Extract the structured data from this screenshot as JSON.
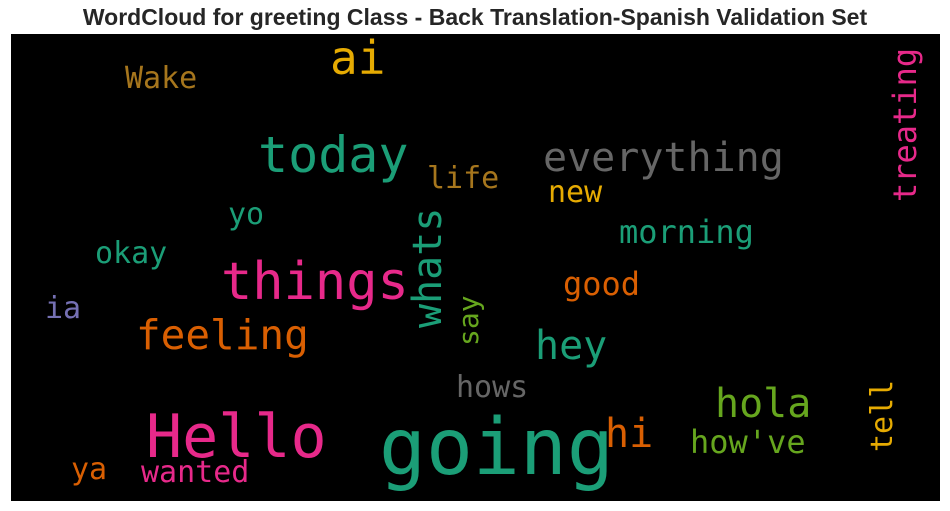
{
  "chart_data": {
    "type": "wordcloud",
    "title": "WordCloud for greeting Class - Back Translation-Spanish Validation Set",
    "background": "#000000",
    "words": [
      {
        "text": "going",
        "color": "#1b9e77",
        "orientation": "horizontal"
      },
      {
        "text": "Hello",
        "color": "#e7298a",
        "orientation": "horizontal"
      },
      {
        "text": "things",
        "color": "#e7298a",
        "orientation": "horizontal"
      },
      {
        "text": "today",
        "color": "#1b9e77",
        "orientation": "horizontal"
      },
      {
        "text": "everything",
        "color": "#666666",
        "orientation": "horizontal"
      },
      {
        "text": "ai",
        "color": "#e6ab02",
        "orientation": "horizontal"
      },
      {
        "text": "feeling",
        "color": "#d95f02",
        "orientation": "horizontal"
      },
      {
        "text": "whats",
        "color": "#1b9e77",
        "orientation": "vertical"
      },
      {
        "text": "hola",
        "color": "#66a61e",
        "orientation": "horizontal"
      },
      {
        "text": "hey",
        "color": "#1b9e77",
        "orientation": "horizontal"
      },
      {
        "text": "hi",
        "color": "#d95f02",
        "orientation": "horizontal"
      },
      {
        "text": "treating",
        "color": "#e7298a",
        "orientation": "vertical"
      },
      {
        "text": "morning",
        "color": "#1b9e77",
        "orientation": "horizontal"
      },
      {
        "text": "how've",
        "color": "#66a61e",
        "orientation": "horizontal"
      },
      {
        "text": "Wake",
        "color": "#a6761d",
        "orientation": "horizontal"
      },
      {
        "text": "tell",
        "color": "#e6ab02",
        "orientation": "vertical"
      },
      {
        "text": "wanted",
        "color": "#e7298a",
        "orientation": "horizontal"
      },
      {
        "text": "good",
        "color": "#d95f02",
        "orientation": "horizontal"
      },
      {
        "text": "okay",
        "color": "#1b9e77",
        "orientation": "horizontal"
      },
      {
        "text": "hows",
        "color": "#666666",
        "orientation": "horizontal"
      },
      {
        "text": "life",
        "color": "#a6761d",
        "orientation": "horizontal"
      },
      {
        "text": "new",
        "color": "#e6ab02",
        "orientation": "horizontal"
      },
      {
        "text": "say",
        "color": "#66a61e",
        "orientation": "vertical"
      },
      {
        "text": "yo",
        "color": "#1b9e77",
        "orientation": "horizontal"
      },
      {
        "text": "ya",
        "color": "#d95f02",
        "orientation": "horizontal"
      },
      {
        "text": "ia",
        "color": "#7570b3",
        "orientation": "horizontal"
      }
    ]
  }
}
